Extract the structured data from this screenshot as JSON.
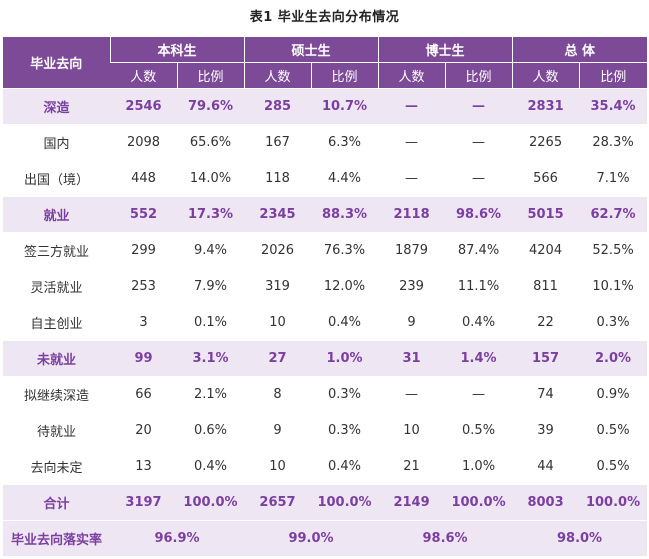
{
  "caption": "表1  毕业生去向分布情况",
  "header": {
    "row_label": "毕业去向",
    "groups": [
      "本科生",
      "硕士生",
      "博士生",
      "总  体"
    ],
    "sub": [
      "人数",
      "比例"
    ]
  },
  "rows": [
    {
      "type": "cat",
      "label": "深造",
      "values": [
        "2546",
        "79.6%",
        "285",
        "10.7%",
        "—",
        "—",
        "2831",
        "35.4%"
      ]
    },
    {
      "type": "sub",
      "label": "国内",
      "values": [
        "2098",
        "65.6%",
        "167",
        "6.3%",
        "—",
        "—",
        "2265",
        "28.3%"
      ]
    },
    {
      "type": "sub",
      "label": "出国（境）",
      "values": [
        "448",
        "14.0%",
        "118",
        "4.4%",
        "—",
        "—",
        "566",
        "7.1%"
      ]
    },
    {
      "type": "cat",
      "label": "就业",
      "values": [
        "552",
        "17.3%",
        "2345",
        "88.3%",
        "2118",
        "98.6%",
        "5015",
        "62.7%"
      ]
    },
    {
      "type": "sub",
      "label": "签三方就业",
      "values": [
        "299",
        "9.4%",
        "2026",
        "76.3%",
        "1879",
        "87.4%",
        "4204",
        "52.5%"
      ]
    },
    {
      "type": "sub",
      "label": "灵活就业",
      "values": [
        "253",
        "7.9%",
        "319",
        "12.0%",
        "239",
        "11.1%",
        "811",
        "10.1%"
      ]
    },
    {
      "type": "sub",
      "label": "自主创业",
      "values": [
        "3",
        "0.1%",
        "10",
        "0.4%",
        "9",
        "0.4%",
        "22",
        "0.3%"
      ]
    },
    {
      "type": "cat",
      "label": "未就业",
      "values": [
        "99",
        "3.1%",
        "27",
        "1.0%",
        "31",
        "1.4%",
        "157",
        "2.0%"
      ]
    },
    {
      "type": "sub",
      "label": "拟继续深造",
      "values": [
        "66",
        "2.1%",
        "8",
        "0.3%",
        "—",
        "—",
        "74",
        "0.9%"
      ]
    },
    {
      "type": "sub",
      "label": "待就业",
      "values": [
        "20",
        "0.6%",
        "9",
        "0.3%",
        "10",
        "0.5%",
        "39",
        "0.5%"
      ]
    },
    {
      "type": "sub",
      "label": "去向未定",
      "values": [
        "13",
        "0.4%",
        "10",
        "0.4%",
        "21",
        "1.0%",
        "44",
        "0.5%"
      ]
    },
    {
      "type": "total",
      "label": "合计",
      "values": [
        "3197",
        "100.0%",
        "2657",
        "100.0%",
        "2149",
        "100.0%",
        "8003",
        "100.0%"
      ]
    }
  ],
  "rate": {
    "label": "毕业去向落实率",
    "values": [
      "96.9%",
      "99.0%",
      "98.6%",
      "98.0%"
    ]
  },
  "colors": {
    "header_bg": "#7d4a97",
    "accent_text": "#7b3fa0",
    "highlight_bg": "#efe6f3"
  }
}
